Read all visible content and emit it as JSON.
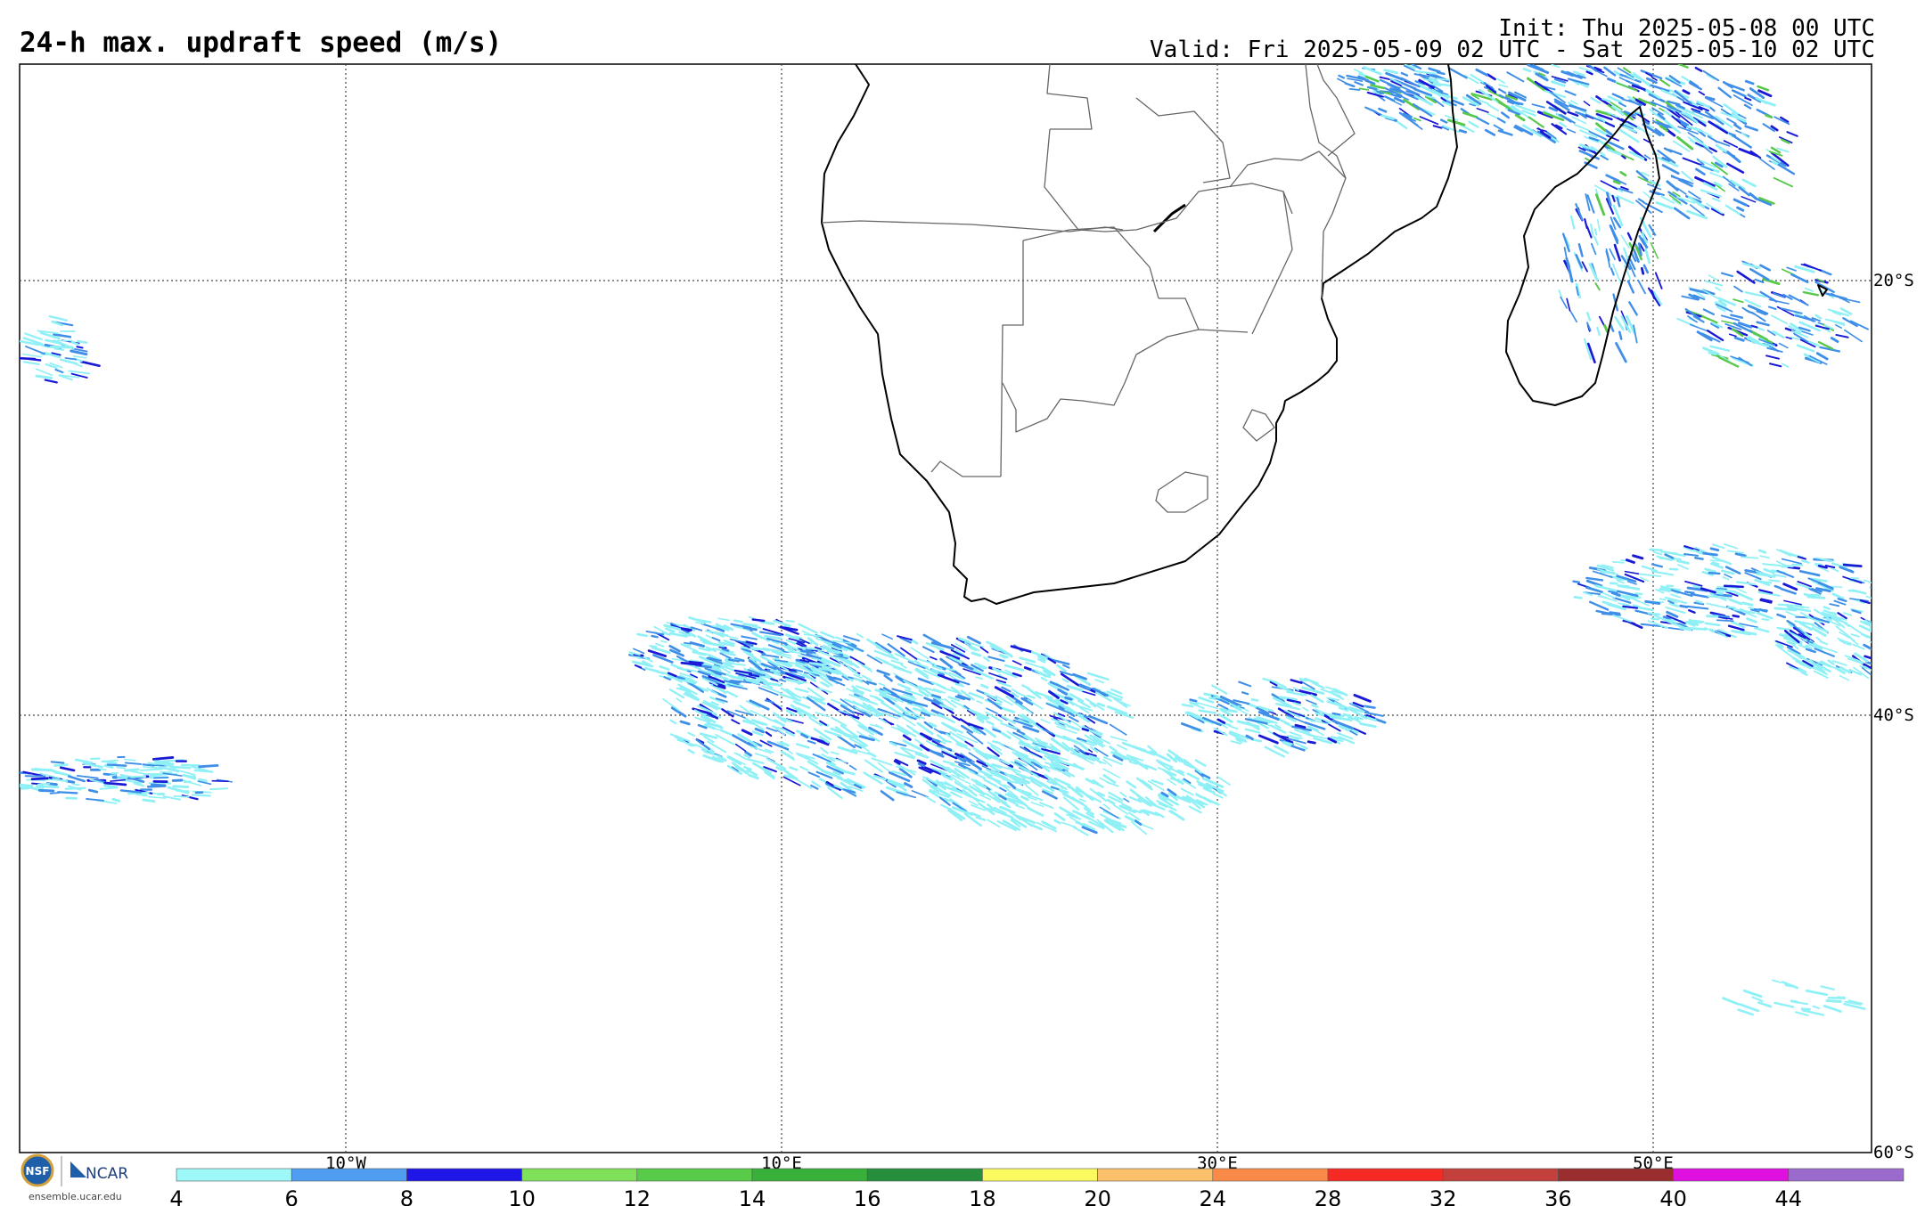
{
  "header": {
    "title": "24-h max. updraft speed (m/s)",
    "init": "Init: Thu 2025-05-08 00 UTC",
    "valid": "Valid: Fri 2025-05-09 02 UTC - Sat 2025-05-10 02 UTC"
  },
  "map": {
    "lon_labels": [
      "10°W",
      "10°E",
      "30°E",
      "50°E"
    ],
    "lat_labels": [
      "20°S",
      "40°S",
      "60°S"
    ],
    "grid": "dotted"
  },
  "colorbar": {
    "tick_labels": [
      "4",
      "6",
      "8",
      "10",
      "12",
      "14",
      "16",
      "18",
      "20",
      "24",
      "28",
      "32",
      "36",
      "40",
      "44"
    ],
    "colors": [
      "#9ff8f8",
      "#4f9df0",
      "#1f17e8",
      "#7fe05a",
      "#58cc48",
      "#38b03a",
      "#258f3d",
      "#fafa60",
      "#fbc06a",
      "#fa8a48",
      "#f52a24",
      "#c4403c",
      "#9a2e2e",
      "#e010e0",
      "#9a6acc"
    ]
  },
  "credits": {
    "org": "NCAR",
    "nsf": "NSF",
    "url": "ensemble.ucar.edu"
  },
  "colors": {
    "coast": "#000000",
    "border": "#666666",
    "grid": "#444444"
  }
}
